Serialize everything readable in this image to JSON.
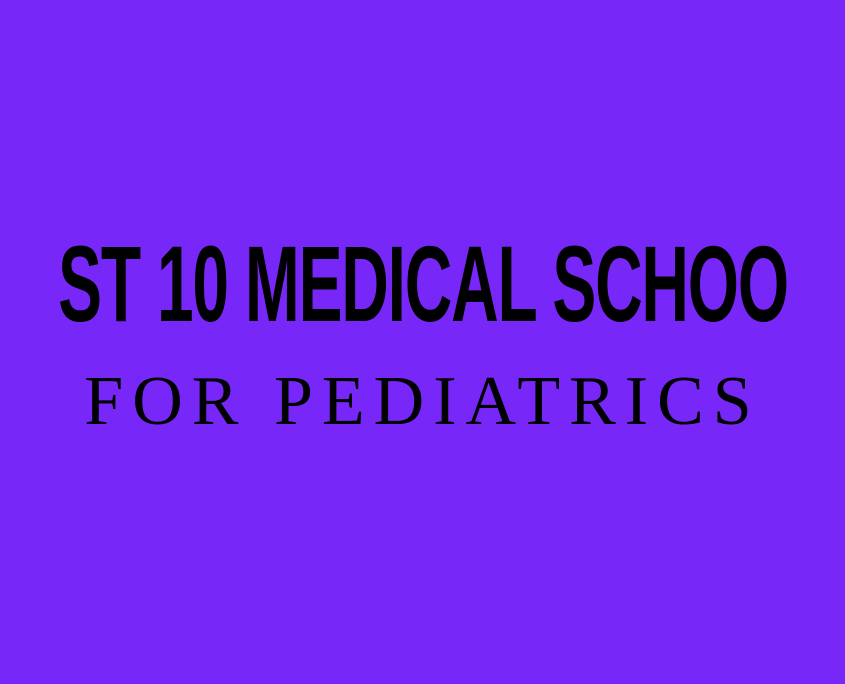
{
  "headline": "ST 10 MEDICAL SCHOO",
  "subheadline": "FOR PEDIATRICS",
  "colors": {
    "background": "#7827f9",
    "text": "#000000"
  }
}
